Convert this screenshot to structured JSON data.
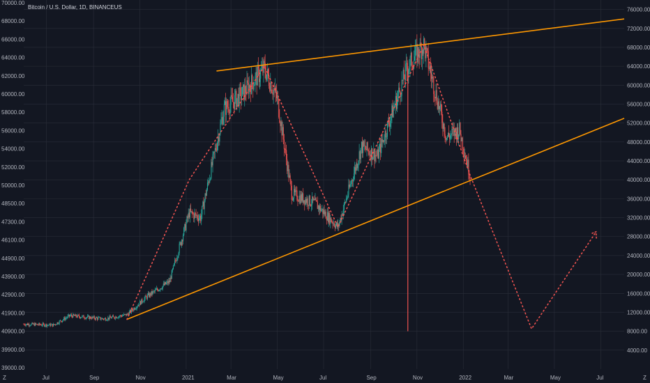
{
  "chart_data": {
    "type": "candlestick",
    "title": "Bitcoin / U.S. Dollar, 1D, BINANCEUS",
    "grid": true,
    "left_axis": {
      "ticks": [
        "70000.00",
        "68000.00",
        "66000.00",
        "64000.00",
        "62000.00",
        "60000.00",
        "58000.00",
        "56000.00",
        "54000.00",
        "52000.00",
        "50000.00",
        "48500.00",
        "47300.00",
        "46100.00",
        "44900.00",
        "43900.00",
        "42900.00",
        "41900.00",
        "40900.00",
        "39900.00",
        "39000.00"
      ]
    },
    "right_axis": {
      "ticks": [
        "76000.00",
        "72000.00",
        "68000.00",
        "64000.00",
        "60000.00",
        "56000.00",
        "52000.00",
        "48000.00",
        "44000.00",
        "40000.00",
        "36000.00",
        "32000.00",
        "28000.00",
        "24000.00",
        "20000.00",
        "16000.00",
        "12000.00",
        "8000.00",
        "4000.00"
      ],
      "range": [
        0,
        78000
      ]
    },
    "x_axis": {
      "ticks": [
        "Z",
        "Jul",
        "Sep",
        "Nov",
        "2021",
        "Mar",
        "May",
        "Jul",
        "Sep",
        "Nov",
        "2022",
        "Mar",
        "May",
        "Jul",
        "Z"
      ],
      "range": [
        "2020-06-01",
        "2022-08-01"
      ]
    },
    "price_series_samples": [
      {
        "date": "2020-06-01",
        "close": 9500
      },
      {
        "date": "2020-07-10",
        "close": 9300
      },
      {
        "date": "2020-08-01",
        "close": 11300
      },
      {
        "date": "2020-09-15",
        "close": 10600
      },
      {
        "date": "2020-10-15",
        "close": 11500
      },
      {
        "date": "2020-11-10",
        "close": 15300
      },
      {
        "date": "2020-12-10",
        "close": 18500
      },
      {
        "date": "2021-01-05",
        "close": 33000
      },
      {
        "date": "2021-01-20",
        "close": 32000
      },
      {
        "date": "2021-02-20",
        "close": 55000
      },
      {
        "date": "2021-03-15",
        "close": 58000
      },
      {
        "date": "2021-04-14",
        "close": 63500
      },
      {
        "date": "2021-05-01",
        "close": 57000
      },
      {
        "date": "2021-05-20",
        "close": 37000
      },
      {
        "date": "2021-06-20",
        "close": 35000
      },
      {
        "date": "2021-07-20",
        "close": 30000
      },
      {
        "date": "2021-08-20",
        "close": 47000
      },
      {
        "date": "2021-09-10",
        "close": 45000
      },
      {
        "date": "2021-10-20",
        "close": 64000
      },
      {
        "date": "2021-11-10",
        "close": 68500
      },
      {
        "date": "2021-12-10",
        "close": 49000
      },
      {
        "date": "2021-12-27",
        "close": 50500
      },
      {
        "date": "2022-01-10",
        "close": 41000
      }
    ],
    "annotations": {
      "upper_trendline": [
        {
          "date": "2021-02-10",
          "price": 63000
        },
        {
          "date": "2022-08-01",
          "price": 74000
        }
      ],
      "lower_trendline": [
        {
          "date": "2020-10-15",
          "price": 10500
        },
        {
          "date": "2022-08-01",
          "price": 53000
        }
      ],
      "projection_path": [
        {
          "date": "2020-10-15",
          "price": 10500
        },
        {
          "date": "2021-01-05",
          "price": 40000
        },
        {
          "date": "2021-04-14",
          "price": 64000
        },
        {
          "date": "2021-07-20",
          "price": 30000
        },
        {
          "date": "2021-11-10",
          "price": 68500
        },
        {
          "date": "2022-01-10",
          "price": 41000
        },
        {
          "date": "2022-04-01",
          "price": 8500
        },
        {
          "date": "2022-06-25",
          "price": 29000
        }
      ],
      "vertical_marker": {
        "date": "2021-10-20",
        "from": 8000,
        "to": 64000
      }
    },
    "colors": {
      "background": "#131722",
      "grid": "#2a2e39",
      "up": "#26a69a",
      "down": "#ef5350",
      "trendline": "#ff9800",
      "projection": "#ef5350",
      "axis_text": "#b2b5be"
    }
  }
}
